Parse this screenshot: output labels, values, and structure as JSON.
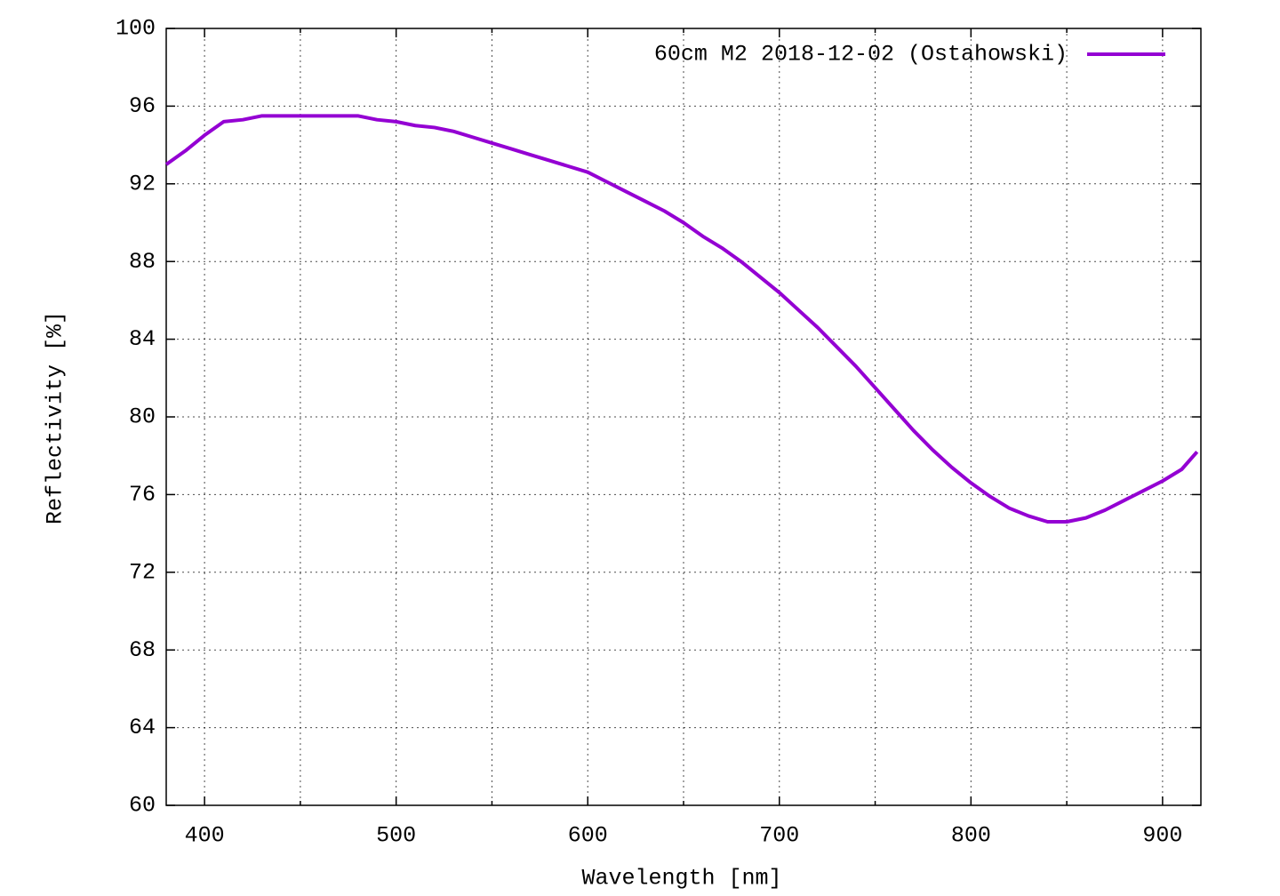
{
  "chart_data": {
    "type": "line",
    "xlabel": "Wavelength [nm]",
    "ylabel": "Reflectivity [%]",
    "x": [
      380,
      390,
      400,
      410,
      420,
      430,
      440,
      450,
      460,
      470,
      480,
      490,
      500,
      510,
      520,
      530,
      540,
      550,
      560,
      570,
      580,
      590,
      600,
      610,
      620,
      630,
      640,
      650,
      660,
      670,
      680,
      690,
      700,
      710,
      720,
      730,
      740,
      750,
      760,
      770,
      780,
      790,
      800,
      810,
      820,
      830,
      840,
      850,
      860,
      870,
      880,
      890,
      900,
      910,
      918
    ],
    "series": [
      {
        "name": "60cm M2 2018-12-02 (Ostahowski)",
        "color": "#9400d3",
        "values": [
          93.0,
          93.7,
          94.5,
          95.2,
          95.3,
          95.5,
          95.5,
          95.5,
          95.5,
          95.5,
          95.5,
          95.3,
          95.2,
          95.0,
          94.9,
          94.7,
          94.4,
          94.1,
          93.8,
          93.5,
          93.2,
          92.9,
          92.6,
          92.1,
          91.6,
          91.1,
          90.6,
          90.0,
          89.3,
          88.7,
          88.0,
          87.2,
          86.4,
          85.5,
          84.6,
          83.6,
          82.6,
          81.5,
          80.4,
          79.3,
          78.3,
          77.4,
          76.6,
          75.9,
          75.3,
          74.9,
          74.6,
          74.6,
          74.8,
          75.2,
          75.7,
          76.2,
          76.7,
          77.3,
          78.2
        ]
      }
    ],
    "xlim": [
      380,
      920
    ],
    "ylim": [
      60,
      100
    ],
    "xticks": [
      400,
      500,
      600,
      700,
      800,
      900
    ],
    "xminorticks": [
      450,
      550,
      650,
      750,
      850
    ],
    "yticks": [
      60,
      64,
      68,
      72,
      76,
      80,
      84,
      88,
      92,
      96,
      100
    ],
    "grid": true,
    "legend": "top-right"
  }
}
